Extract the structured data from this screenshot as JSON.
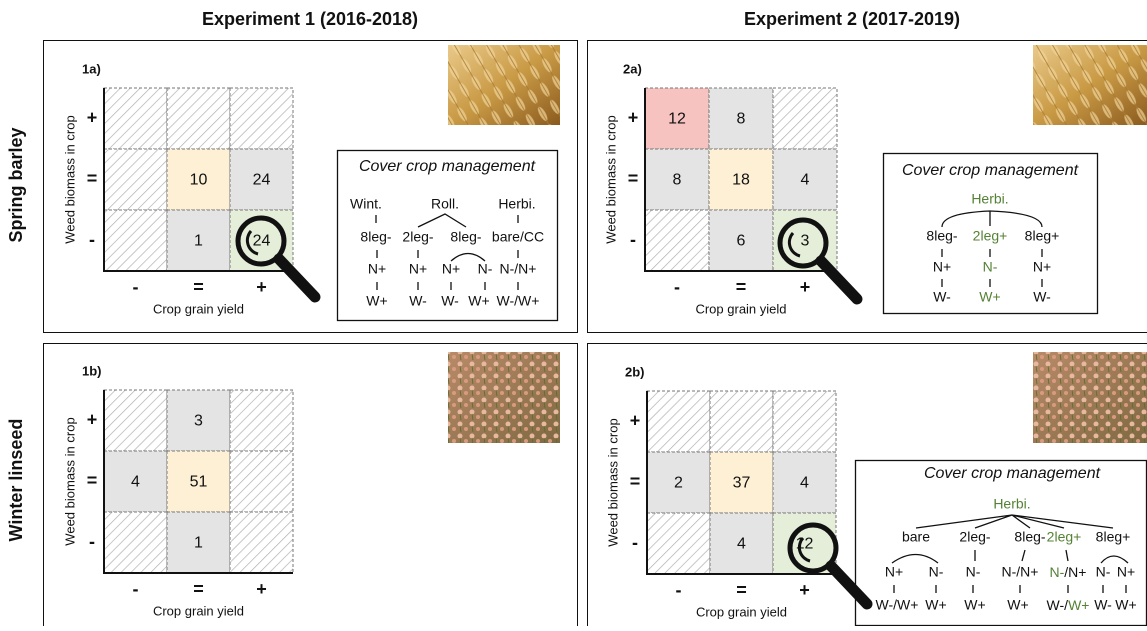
{
  "columns": [
    "Experiment 1 (2016-2018)",
    "Experiment 2 (2017-2019)"
  ],
  "rows": [
    "Spring barley",
    "Winter linseed"
  ],
  "panels": [
    {
      "label": "1a)",
      "y_label": "Weed biomass in crop",
      "x_label": "Crop grain yield",
      "y_ticks": [
        "+",
        "=",
        "-"
      ],
      "x_ticks": [
        "-",
        "=",
        "+"
      ],
      "cells": [
        [
          {
            "fill": "hatch"
          },
          {
            "fill": "hatch"
          },
          {
            "fill": "hatch"
          }
        ],
        [
          {
            "fill": "hatch"
          },
          {
            "value": 10,
            "fill": "#fdf0d5"
          },
          {
            "value": 24,
            "fill": "#e4e4e4"
          }
        ],
        [
          {
            "fill": "hatch"
          },
          {
            "value": 1,
            "fill": "#e4e4e4"
          },
          {
            "value": 24,
            "fill": "#e4eed9"
          }
        ]
      ],
      "management": {
        "title": "Cover crop management",
        "nodes": [
          "Wint.",
          "Roll.",
          "Herbi.",
          "8leg-",
          "2leg-",
          "8leg-",
          "bare/CC",
          "N+",
          "N+",
          "N+",
          "N-",
          "N-/N+",
          "W+",
          "W-",
          "W-",
          "W+",
          "W-/W+"
        ]
      }
    },
    {
      "label": "2a)",
      "y_label": "Weed biomass in crop",
      "x_label": "Crop grain yield",
      "y_ticks": [
        "+",
        "=",
        "-"
      ],
      "x_ticks": [
        "-",
        "=",
        "+"
      ],
      "cells": [
        [
          {
            "value": 12,
            "fill": "#f6c3c1"
          },
          {
            "value": 8,
            "fill": "#e4e4e4"
          },
          {
            "fill": "hatch"
          }
        ],
        [
          {
            "value": 8,
            "fill": "#e4e4e4"
          },
          {
            "value": 18,
            "fill": "#fdf0d5"
          },
          {
            "value": 4,
            "fill": "#e4e4e4"
          }
        ],
        [
          {
            "fill": "hatch"
          },
          {
            "value": 6,
            "fill": "#e4e4e4"
          },
          {
            "value": 3,
            "fill": "#e4eed9"
          }
        ]
      ],
      "management": {
        "title": "Cover crop management",
        "nodes": [
          "Herbi.",
          "8leg-",
          "2leg+",
          "8leg+",
          "N+",
          "N-",
          "N+",
          "W-",
          "W+",
          "W-"
        ]
      }
    },
    {
      "label": "1b)",
      "y_label": "Weed biomass in crop",
      "x_label": "Crop grain yield",
      "y_ticks": [
        "+",
        "=",
        "-"
      ],
      "x_ticks": [
        "-",
        "=",
        "+"
      ],
      "cells": [
        [
          {
            "fill": "hatch"
          },
          {
            "value": 3,
            "fill": "#e4e4e4"
          },
          {
            "fill": "hatch"
          }
        ],
        [
          {
            "value": 4,
            "fill": "#e4e4e4"
          },
          {
            "value": 51,
            "fill": "#fdf0d5"
          },
          {
            "fill": "hatch"
          }
        ],
        [
          {
            "fill": "hatch"
          },
          {
            "value": 1,
            "fill": "#e4e4e4"
          },
          {
            "fill": "hatch"
          }
        ]
      ]
    },
    {
      "label": "2b)",
      "y_label": "Weed biomass in crop",
      "x_label": "Crop grain yield",
      "y_ticks": [
        "+",
        "=",
        "-"
      ],
      "x_ticks": [
        "-",
        "=",
        "+"
      ],
      "cells": [
        [
          {
            "fill": "hatch"
          },
          {
            "fill": "hatch"
          },
          {
            "fill": "hatch"
          }
        ],
        [
          {
            "value": 2,
            "fill": "#e4e4e4"
          },
          {
            "value": 37,
            "fill": "#fdf0d5"
          },
          {
            "value": 4,
            "fill": "#e4e4e4"
          }
        ],
        [
          {
            "fill": "hatch"
          },
          {
            "value": 4,
            "fill": "#e4e4e4"
          },
          {
            "value": 12,
            "fill": "#e4eed9"
          }
        ]
      ],
      "management": {
        "title": "Cover crop management",
        "nodes": [
          "Herbi.",
          "bare",
          "2leg-",
          "8leg-",
          "2leg+",
          "8leg+",
          "N+",
          "N-",
          "N-",
          "N-/N+",
          [
            "N-",
            "/N+"
          ],
          "N-",
          "N+",
          "W-/W+",
          "W+",
          "W+",
          "W+",
          [
            "W-/",
            "W+"
          ],
          "W-",
          "W+"
        ]
      }
    }
  ]
}
